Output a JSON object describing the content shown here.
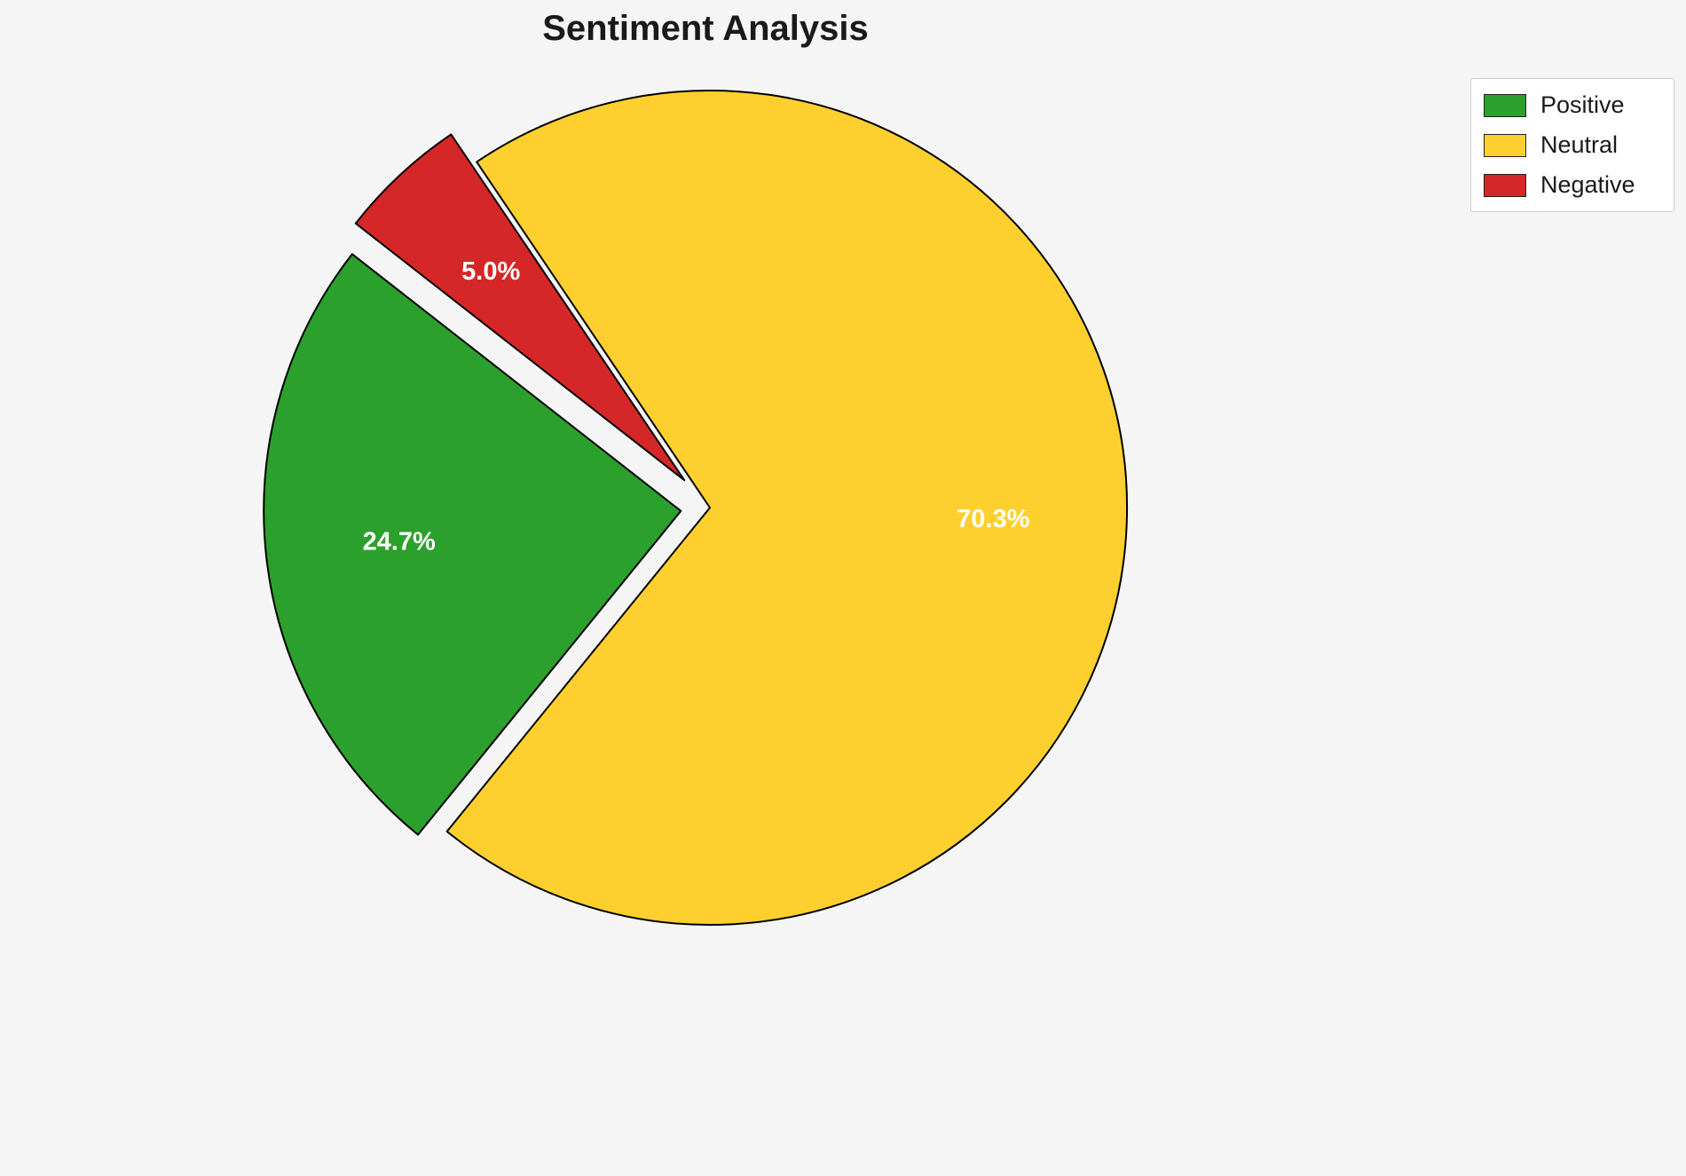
{
  "chart_data": {
    "type": "pie",
    "title": "Sentiment Analysis",
    "labels": [
      "Positive",
      "Neutral",
      "Negative"
    ],
    "values": [
      24.7,
      70.3,
      5.0
    ],
    "percent_labels": [
      "24.7%",
      "70.3%",
      "5.0%"
    ],
    "colors": [
      "#2ca02c",
      "#fdd02f",
      "#d62728"
    ],
    "edge_color": "#000000",
    "label_color": "#ffffff",
    "background": "#f5f5f5",
    "start_angle": 142,
    "counterclockwise": true,
    "explode": [
      0.07,
      0,
      0.09
    ],
    "label_distance": 0.68,
    "legend": {
      "position": "upper right",
      "entries": [
        "Positive",
        "Neutral",
        "Negative"
      ]
    }
  }
}
